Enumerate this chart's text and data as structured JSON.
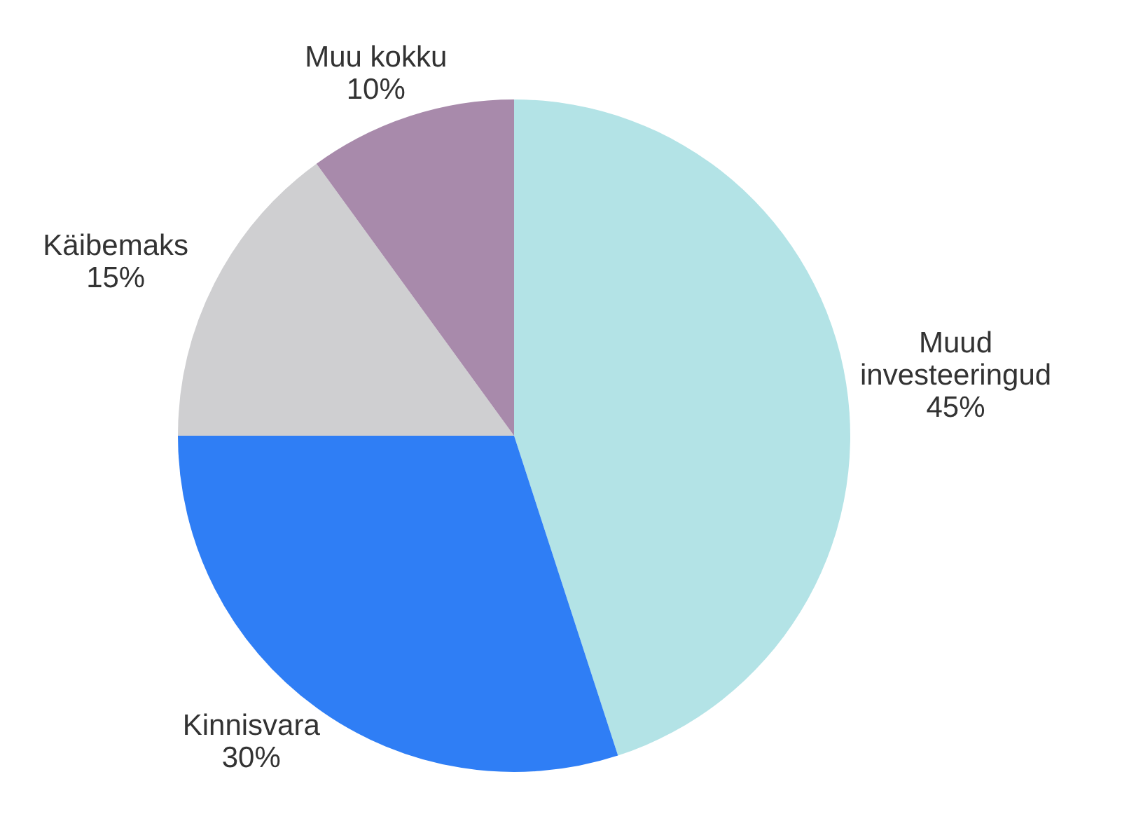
{
  "chart_data": {
    "type": "pie",
    "categories": [
      "Muud investeeringud",
      "Kinnisvara",
      "Käibemaks",
      "Muu kokku"
    ],
    "values": [
      45,
      30,
      15,
      10
    ],
    "value_labels": [
      "45%",
      "30%",
      "15%",
      "10%"
    ],
    "colors": [
      "#b3e3e6",
      "#2f7ef5",
      "#cfcfd1",
      "#a88aab"
    ],
    "legend": false
  }
}
